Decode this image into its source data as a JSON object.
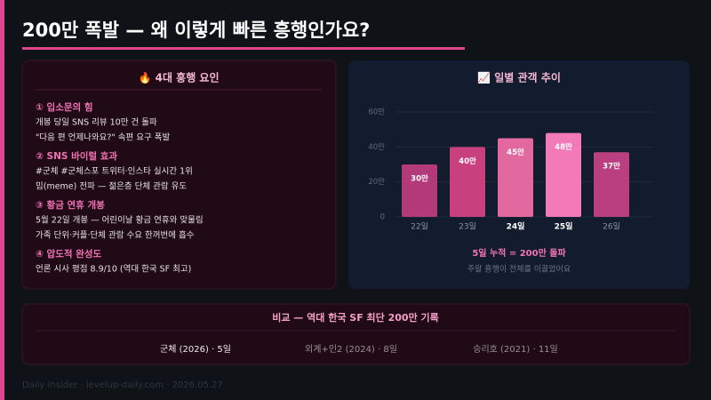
{
  "header": {
    "title": "200만 폭발 — 왜 이렇게 빠른 흥행인가요?"
  },
  "factors": {
    "title": "🔥 4대 흥행 요인",
    "items": [
      {
        "heading": "① 입소문의 힘",
        "lines": [
          "개봉 당일 SNS 리뷰 10만 건 돌파",
          "\"다음 편 언제나와요?\" 속편 요구 폭발"
        ]
      },
      {
        "heading": "② SNS 바이럴 효과",
        "lines": [
          "#군체 #군체스포 트위터·인스타 실시간 1위",
          "밈(meme) 전파 — 젊은층 단체 관람 유도"
        ]
      },
      {
        "heading": "③ 황금 연휴 개봉",
        "lines": [
          "5월 22일 개봉 — 어린이날 황금 연휴와 맞물림",
          "가족 단위·커플·단체 관람 수요 한꺼번에 흡수"
        ]
      },
      {
        "heading": "④ 압도적 완성도",
        "lines": [
          "언론 시사 평점 8.9/10 (역대 한국 SF 최고)"
        ]
      }
    ]
  },
  "chart_data": {
    "type": "bar",
    "title": "📈 일별 관객 추이",
    "categories": [
      "22일",
      "23일",
      "24일",
      "25일",
      "26일"
    ],
    "values": [
      30,
      40,
      45,
      48,
      37
    ],
    "value_labels": [
      "30만",
      "40만",
      "45만",
      "48만",
      "37만"
    ],
    "colors": [
      "#b23a7a",
      "#c9407f",
      "#e2699f",
      "#f27ab6",
      "#b93f80"
    ],
    "ylim": [
      0,
      60
    ],
    "yticks": [
      0,
      {
        "value": 20,
        "label": "20만"
      },
      {
        "value": 40,
        "label": "40만"
      },
      {
        "value": 60,
        "label": "60만"
      }
    ],
    "grid": true,
    "note": "5일 누적 = 200만 돌파",
    "subnote": "주말 흥행이 전체를 이끌었어요"
  },
  "comparison": {
    "title": "비교 — 역대 한국 SF 최단 200만 기록",
    "items": [
      "군체 (2026) · 5일",
      "외계+인2 (2024) · 8일",
      "승리호 (2021) · 11일"
    ]
  },
  "footer": "Daily Insider · levelup-daily.com · 2026.05.27"
}
